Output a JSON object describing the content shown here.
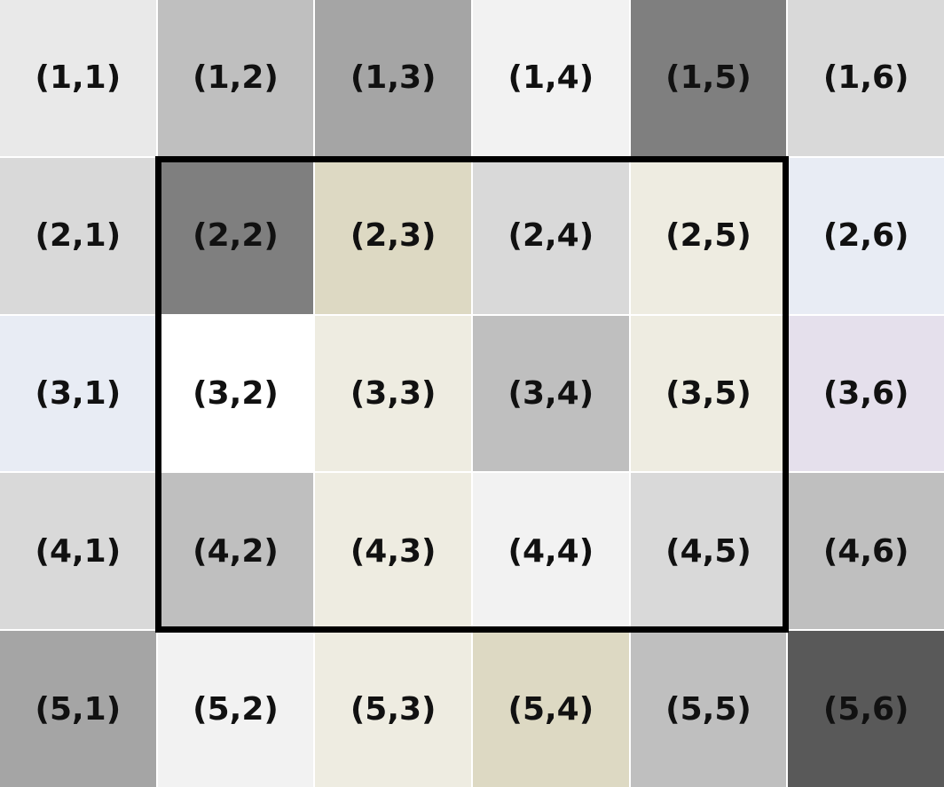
{
  "cells": [
    {
      "label": "(1,1)",
      "color": "#e9e9e9"
    },
    {
      "label": "(1,2)",
      "color": "#bfbfbf"
    },
    {
      "label": "(1,3)",
      "color": "#a5a5a5"
    },
    {
      "label": "(1,4)",
      "color": "#f2f2f2"
    },
    {
      "label": "(1,5)",
      "color": "#7f7f7f"
    },
    {
      "label": "(1,6)",
      "color": "#d9d9d9"
    },
    {
      "label": "(2,1)",
      "color": "#d9d9d9"
    },
    {
      "label": "(2,2)",
      "color": "#7f7f7f"
    },
    {
      "label": "(2,3)",
      "color": "#ddd9c3"
    },
    {
      "label": "(2,4)",
      "color": "#d9d9d9"
    },
    {
      "label": "(2,5)",
      "color": "#eeece1"
    },
    {
      "label": "(2,6)",
      "color": "#e8ecf4"
    },
    {
      "label": "(3,1)",
      "color": "#e8ecf4"
    },
    {
      "label": "(3,2)",
      "color": "#ffffff"
    },
    {
      "label": "(3,3)",
      "color": "#eeece1"
    },
    {
      "label": "(3,4)",
      "color": "#bfbfbf"
    },
    {
      "label": "(3,5)",
      "color": "#eeece1"
    },
    {
      "label": "(3,6)",
      "color": "#e5e0ec"
    },
    {
      "label": "(4,1)",
      "color": "#d9d9d9"
    },
    {
      "label": "(4,2)",
      "color": "#bfbfbf"
    },
    {
      "label": "(4,3)",
      "color": "#eeece1"
    },
    {
      "label": "(4,4)",
      "color": "#f2f2f2"
    },
    {
      "label": "(4,5)",
      "color": "#d9d9d9"
    },
    {
      "label": "(4,6)",
      "color": "#bfbfbf"
    },
    {
      "label": "(5,1)",
      "color": "#a5a5a5"
    },
    {
      "label": "(5,2)",
      "color": "#f2f2f2"
    },
    {
      "label": "(5,3)",
      "color": "#eeece1"
    },
    {
      "label": "(5,4)",
      "color": "#ddd9c3"
    },
    {
      "label": "(5,5)",
      "color": "#bfbfbf"
    },
    {
      "label": "(5,6)",
      "color": "#595959"
    }
  ],
  "highlight": {
    "rows": [
      2,
      4
    ],
    "cols": [
      2,
      5
    ],
    "border_color": "#000000"
  }
}
